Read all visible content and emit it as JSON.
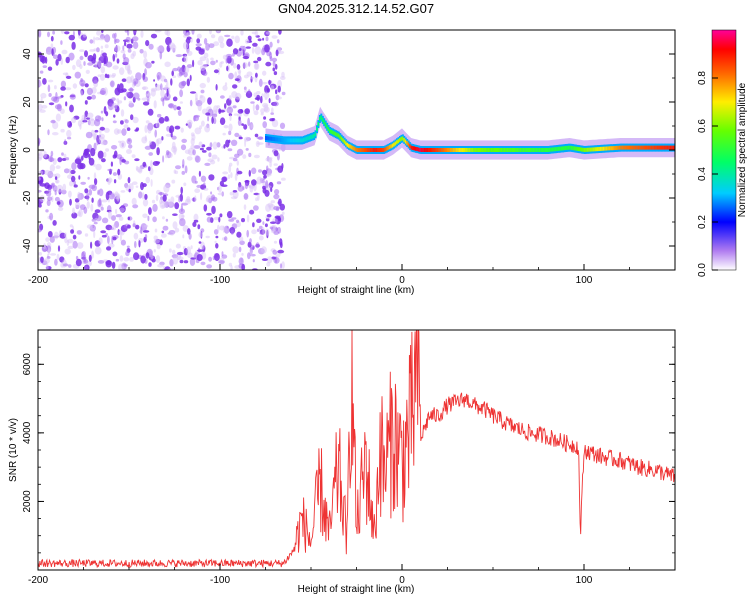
{
  "title": "GN04.2025.312.14.52.G07",
  "chart_data": [
    {
      "type": "heatmap",
      "title": "GN04.2025.312.14.52.G07",
      "xlabel": "Height of straight line (km)",
      "ylabel": "Frequency (Hz)",
      "xlim": [
        -200,
        150
      ],
      "ylim": [
        -50,
        50
      ],
      "x_ticks": [
        -200,
        -100,
        0,
        100
      ],
      "y_ticks": [
        -40,
        -20,
        0,
        20,
        40
      ],
      "colorbar": {
        "label": "Normalized spectral amplitude",
        "range": [
          0.0,
          1.0
        ],
        "ticks": [
          0.0,
          0.2,
          0.4,
          0.6,
          0.8
        ]
      },
      "noise_region_x": [
        -200,
        -65
      ],
      "ridge": {
        "x": [
          -75,
          -65,
          -55,
          -48,
          -45,
          -40,
          -35,
          -30,
          -25,
          -20,
          -15,
          -10,
          -5,
          0,
          5,
          10,
          20,
          40,
          60,
          80,
          92,
          100,
          120,
          150
        ],
        "freq": [
          5,
          4,
          4,
          6,
          14,
          8,
          6,
          2,
          0,
          0,
          0,
          0,
          2,
          5,
          1,
          0,
          0,
          0,
          0,
          0,
          1,
          0,
          1,
          1
        ],
        "amplitude": [
          0.25,
          0.3,
          0.35,
          0.4,
          0.45,
          0.5,
          0.55,
          0.7,
          0.8,
          0.85,
          0.9,
          0.85,
          0.7,
          0.6,
          0.9,
          0.95,
          0.85,
          0.6,
          0.55,
          0.5,
          0.5,
          0.6,
          0.8,
          0.9
        ]
      }
    },
    {
      "type": "line",
      "xlabel": "Height of straight line (km)",
      "ylabel": "SNR (10 * v/v)",
      "xlim": [
        -200,
        150
      ],
      "ylim": [
        0,
        7000
      ],
      "x_ticks": [
        -200,
        -100,
        0,
        100
      ],
      "y_ticks": [
        2000,
        4000,
        6000
      ],
      "color": "#ee3333",
      "series": [
        {
          "x": [
            -200,
            -150,
            -100,
            -65,
            -60,
            -55,
            -50,
            -45,
            -40,
            -35,
            -30,
            -28,
            -25,
            -20,
            -15,
            -12,
            -10,
            -5,
            0,
            5,
            9,
            10,
            15,
            20,
            25,
            30,
            35,
            40,
            45,
            50,
            60,
            70,
            80,
            90,
            97,
            98,
            100,
            110,
            120,
            130,
            140,
            150
          ],
          "y": [
            150,
            150,
            150,
            150,
            500,
            1500,
            800,
            2500,
            1000,
            3000,
            800,
            6800,
            1200,
            3200,
            1000,
            3800,
            2800,
            4000,
            3200,
            4200,
            6300,
            3800,
            4500,
            4500,
            4800,
            4900,
            5000,
            4800,
            4700,
            4500,
            4200,
            4000,
            3900,
            3700,
            3600,
            1000,
            3500,
            3300,
            3200,
            3000,
            2900,
            2700
          ]
        }
      ]
    }
  ]
}
